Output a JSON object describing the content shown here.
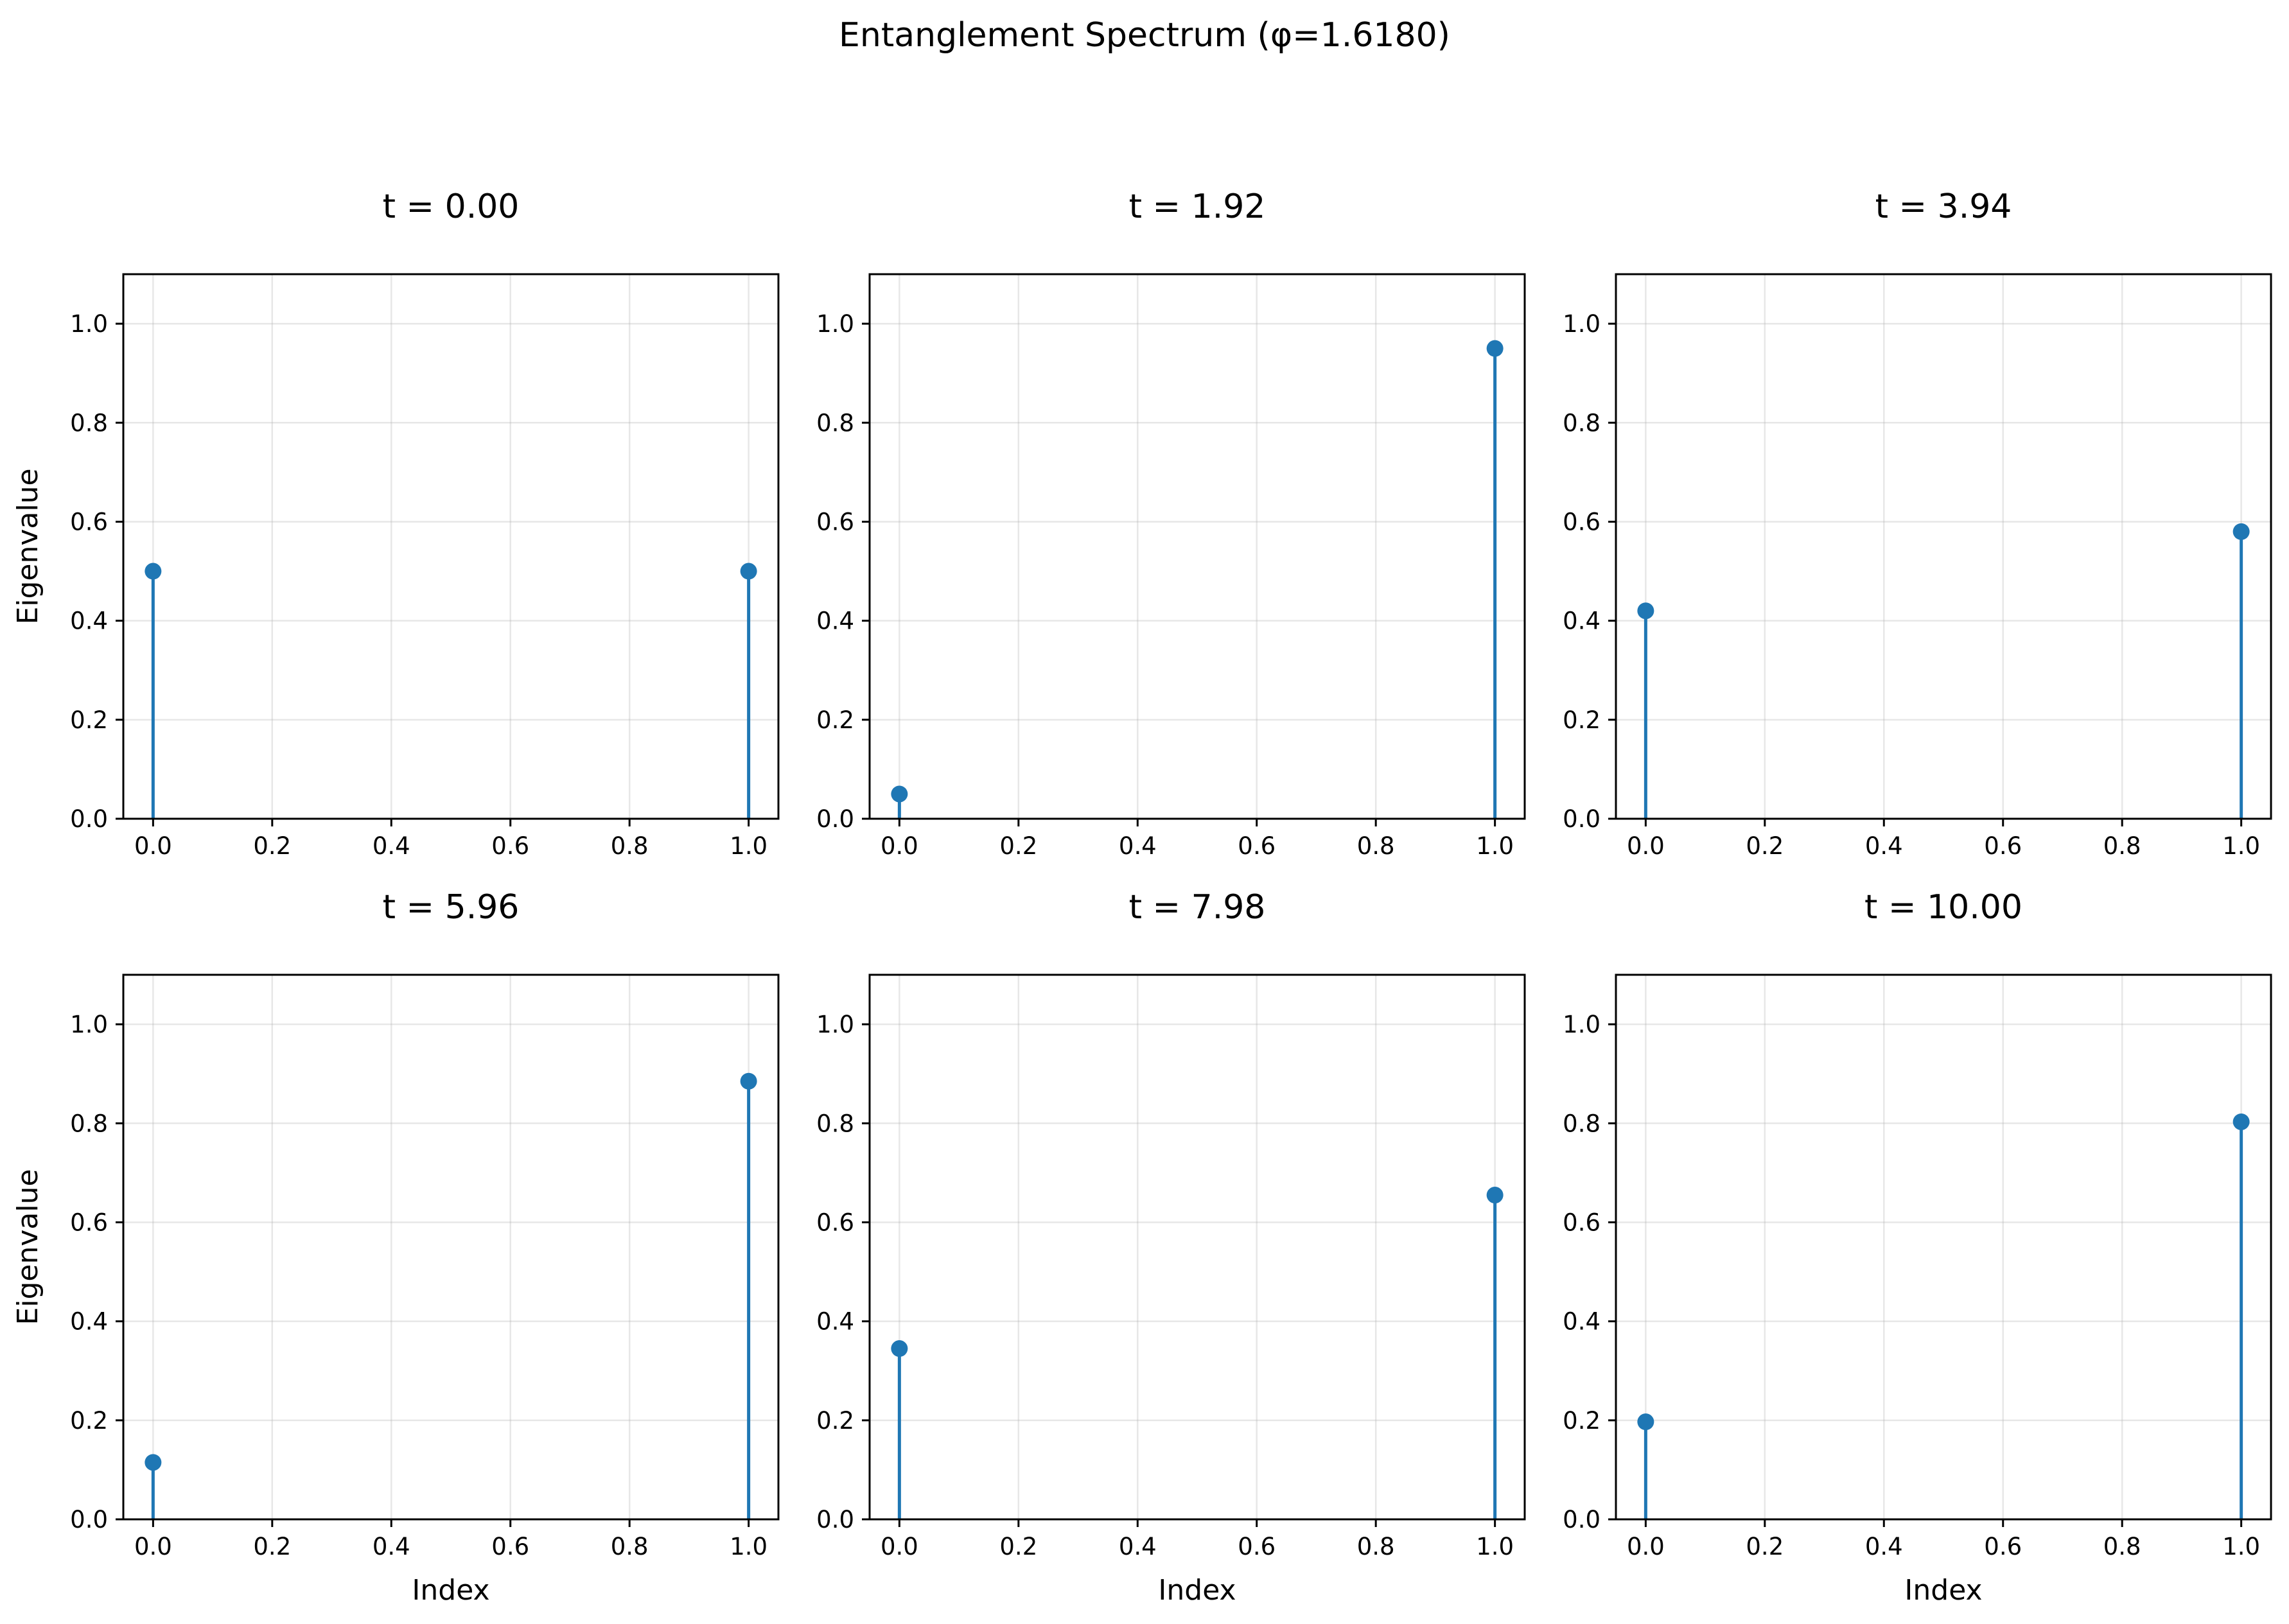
{
  "figure": {
    "suptitle": "Entanglement Spectrum (φ=1.6180)",
    "color": "#1f77b4"
  },
  "chart_data": [
    {
      "type": "stem",
      "title": "t = 0.00",
      "xlabel": "",
      "ylabel": "Eigenvalue",
      "x": [
        0,
        1
      ],
      "values": [
        0.5,
        0.5
      ],
      "xlim": [
        -0.05,
        1.05
      ],
      "ylim": [
        0,
        1.1
      ],
      "xticks": [
        "0.0",
        "0.2",
        "0.4",
        "0.6",
        "0.8",
        "1.0"
      ],
      "yticks": [
        "0.0",
        "0.2",
        "0.4",
        "0.6",
        "0.8",
        "1.0"
      ],
      "grid": true
    },
    {
      "type": "stem",
      "title": "t = 1.92",
      "xlabel": "",
      "ylabel": "",
      "x": [
        0,
        1
      ],
      "values": [
        0.05,
        0.95
      ],
      "xlim": [
        -0.05,
        1.05
      ],
      "ylim": [
        0,
        1.1
      ],
      "xticks": [
        "0.0",
        "0.2",
        "0.4",
        "0.6",
        "0.8",
        "1.0"
      ],
      "yticks": [
        "0.0",
        "0.2",
        "0.4",
        "0.6",
        "0.8",
        "1.0"
      ],
      "grid": true
    },
    {
      "type": "stem",
      "title": "t = 3.94",
      "xlabel": "",
      "ylabel": "",
      "x": [
        0,
        1
      ],
      "values": [
        0.42,
        0.58
      ],
      "xlim": [
        -0.05,
        1.05
      ],
      "ylim": [
        0,
        1.1
      ],
      "xticks": [
        "0.0",
        "0.2",
        "0.4",
        "0.6",
        "0.8",
        "1.0"
      ],
      "yticks": [
        "0.0",
        "0.2",
        "0.4",
        "0.6",
        "0.8",
        "1.0"
      ],
      "grid": true
    },
    {
      "type": "stem",
      "title": "t = 5.96",
      "xlabel": "Index",
      "ylabel": "Eigenvalue",
      "x": [
        0,
        1
      ],
      "values": [
        0.115,
        0.885
      ],
      "xlim": [
        -0.05,
        1.05
      ],
      "ylim": [
        0,
        1.1
      ],
      "xticks": [
        "0.0",
        "0.2",
        "0.4",
        "0.6",
        "0.8",
        "1.0"
      ],
      "yticks": [
        "0.0",
        "0.2",
        "0.4",
        "0.6",
        "0.8",
        "1.0"
      ],
      "grid": true
    },
    {
      "type": "stem",
      "title": "t = 7.98",
      "xlabel": "Index",
      "ylabel": "",
      "x": [
        0,
        1
      ],
      "values": [
        0.345,
        0.655
      ],
      "xlim": [
        -0.05,
        1.05
      ],
      "ylim": [
        0,
        1.1
      ],
      "xticks": [
        "0.0",
        "0.2",
        "0.4",
        "0.6",
        "0.8",
        "1.0"
      ],
      "yticks": [
        "0.0",
        "0.2",
        "0.4",
        "0.6",
        "0.8",
        "1.0"
      ],
      "grid": true
    },
    {
      "type": "stem",
      "title": "t = 10.00",
      "xlabel": "Index",
      "ylabel": "",
      "x": [
        0,
        1
      ],
      "values": [
        0.197,
        0.803
      ],
      "xlim": [
        -0.05,
        1.05
      ],
      "ylim": [
        0,
        1.1
      ],
      "xticks": [
        "0.0",
        "0.2",
        "0.4",
        "0.6",
        "0.8",
        "1.0"
      ],
      "yticks": [
        "0.0",
        "0.2",
        "0.4",
        "0.6",
        "0.8",
        "1.0"
      ],
      "grid": true
    }
  ]
}
